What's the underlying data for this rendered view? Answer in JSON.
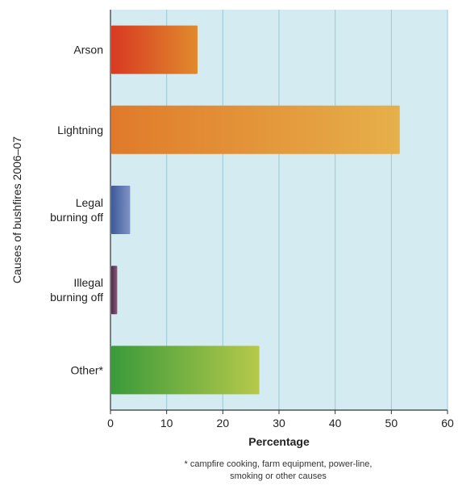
{
  "chart_data": {
    "type": "bar",
    "orientation": "horizontal",
    "categories": [
      [
        "Arson"
      ],
      [
        "Lightning"
      ],
      [
        "Legal",
        "burning off"
      ],
      [
        "Illegal",
        "burning off"
      ],
      [
        "Other*"
      ]
    ],
    "values": [
      15.5,
      51.5,
      3.5,
      1.2,
      26.5
    ],
    "bar_colors": [
      [
        "#d83a22",
        "#e08a2c"
      ],
      [
        "#e07a2a",
        "#e6b04a"
      ],
      [
        "#3e5a9a",
        "#7f93c4"
      ],
      [
        "#4a2b4a",
        "#8a5a7a"
      ],
      [
        "#3a9a3a",
        "#b6c94a"
      ]
    ],
    "xlabel": "Percentage",
    "ylabel": "Causes of bushfires 2006–07",
    "xlim": [
      0,
      60
    ],
    "xticks": [
      "0",
      "10",
      "20",
      "30",
      "40",
      "50",
      "60"
    ],
    "grid": true,
    "background": "#d4ebf1",
    "footnote": [
      "* campfire cooking, farm equipment, power-line,",
      "smoking or other causes"
    ]
  }
}
